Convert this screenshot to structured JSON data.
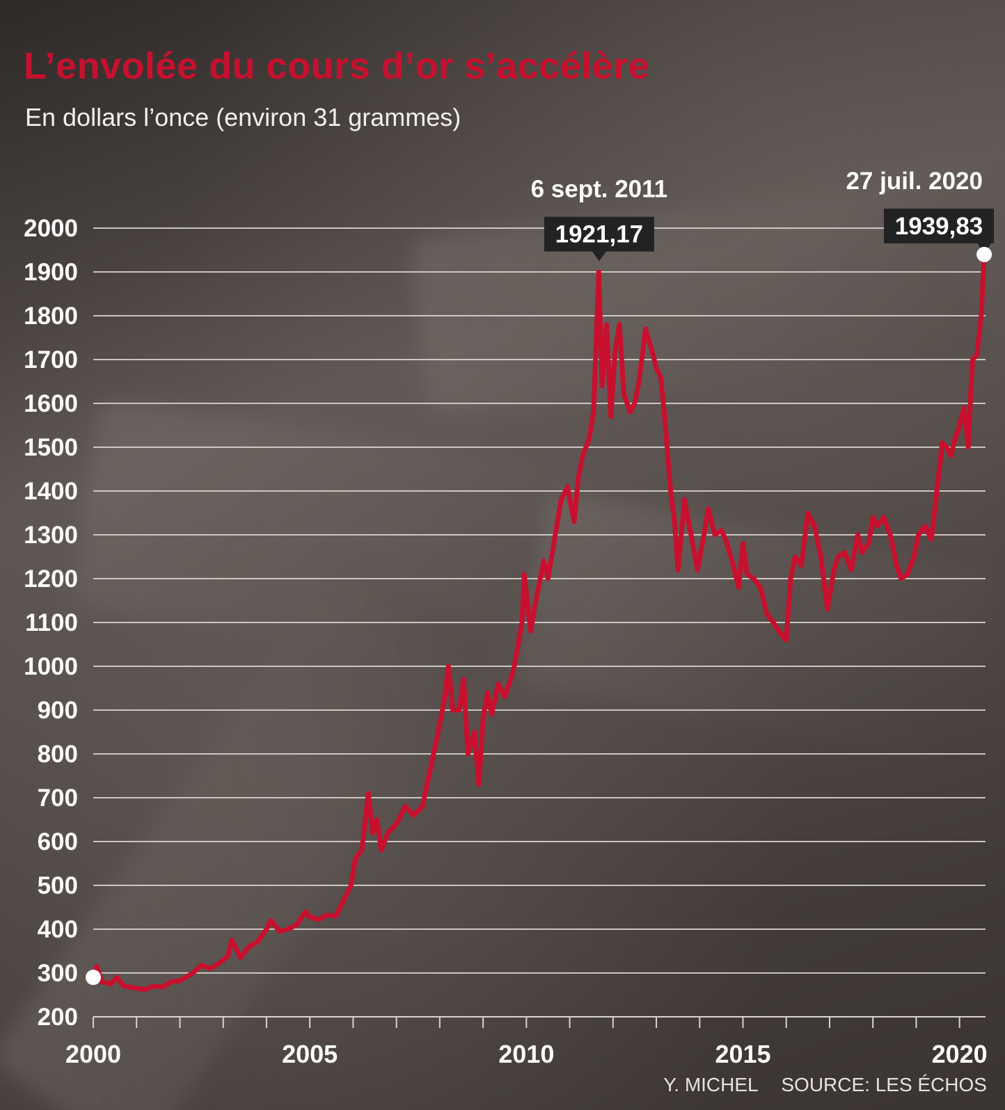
{
  "header": {
    "title": "L’envolée du cours d’or s’accélère",
    "subtitle": "En dollars l’once (environ 31 grammes)"
  },
  "footer": {
    "author": "Y. MICHEL",
    "source": "SOURCE: LES ÉCHOS"
  },
  "colors": {
    "line": "#c8102e",
    "grid": "#d9d4d0",
    "label_box": "#222222",
    "marker": "#ffffff"
  },
  "chart_data": {
    "type": "line",
    "title": "L’envolée du cours d’or s’accélère",
    "ylabel": "En dollars l’once (environ 31 grammes)",
    "xlabel": "",
    "ylim": [
      200,
      2000
    ],
    "yticks": [
      200,
      300,
      400,
      500,
      600,
      700,
      800,
      900,
      1000,
      1100,
      1200,
      1300,
      1400,
      1500,
      1600,
      1700,
      1800,
      1900,
      2000
    ],
    "xlim": [
      2000,
      2020.6
    ],
    "xticks": [
      2000,
      2001,
      2002,
      2003,
      2004,
      2005,
      2006,
      2007,
      2008,
      2009,
      2010,
      2011,
      2012,
      2013,
      2014,
      2015,
      2016,
      2017,
      2018,
      2019,
      2020
    ],
    "xtick_labels": [
      {
        "x": 2000,
        "label": "2000"
      },
      {
        "x": 2005,
        "label": "2005"
      },
      {
        "x": 2010,
        "label": "2010"
      },
      {
        "x": 2015,
        "label": "2015"
      },
      {
        "x": 2020,
        "label": "2020"
      }
    ],
    "grid": true,
    "series": [
      {
        "points": [
          [
            2000.0,
            290
          ],
          [
            2000.08,
            315
          ],
          [
            2000.2,
            280
          ],
          [
            2000.4,
            275
          ],
          [
            2000.55,
            290
          ],
          [
            2000.7,
            270
          ],
          [
            2001.0,
            265
          ],
          [
            2001.2,
            262
          ],
          [
            2001.4,
            270
          ],
          [
            2001.6,
            268
          ],
          [
            2001.8,
            280
          ],
          [
            2002.0,
            282
          ],
          [
            2002.3,
            300
          ],
          [
            2002.5,
            318
          ],
          [
            2002.7,
            310
          ],
          [
            2002.9,
            322
          ],
          [
            2003.1,
            338
          ],
          [
            2003.2,
            375
          ],
          [
            2003.4,
            335
          ],
          [
            2003.6,
            360
          ],
          [
            2003.8,
            372
          ],
          [
            2004.0,
            400
          ],
          [
            2004.1,
            420
          ],
          [
            2004.3,
            395
          ],
          [
            2004.5,
            400
          ],
          [
            2004.7,
            410
          ],
          [
            2004.9,
            440
          ],
          [
            2005.0,
            428
          ],
          [
            2005.2,
            422
          ],
          [
            2005.4,
            432
          ],
          [
            2005.6,
            430
          ],
          [
            2005.8,
            470
          ],
          [
            2005.95,
            500
          ],
          [
            2006.05,
            560
          ],
          [
            2006.2,
            580
          ],
          [
            2006.35,
            710
          ],
          [
            2006.45,
            620
          ],
          [
            2006.55,
            650
          ],
          [
            2006.65,
            580
          ],
          [
            2006.8,
            620
          ],
          [
            2007.0,
            640
          ],
          [
            2007.2,
            680
          ],
          [
            2007.4,
            660
          ],
          [
            2007.6,
            680
          ],
          [
            2007.75,
            750
          ],
          [
            2007.9,
            820
          ],
          [
            2008.1,
            920
          ],
          [
            2008.2,
            1000
          ],
          [
            2008.3,
            900
          ],
          [
            2008.45,
            900
          ],
          [
            2008.55,
            970
          ],
          [
            2008.65,
            800
          ],
          [
            2008.8,
            850
          ],
          [
            2008.9,
            730
          ],
          [
            2009.0,
            880
          ],
          [
            2009.1,
            940
          ],
          [
            2009.2,
            890
          ],
          [
            2009.35,
            960
          ],
          [
            2009.5,
            930
          ],
          [
            2009.7,
            990
          ],
          [
            2009.9,
            1100
          ],
          [
            2009.95,
            1210
          ],
          [
            2010.1,
            1080
          ],
          [
            2010.2,
            1140
          ],
          [
            2010.4,
            1240
          ],
          [
            2010.5,
            1200
          ],
          [
            2010.6,
            1260
          ],
          [
            2010.7,
            1320
          ],
          [
            2010.8,
            1380
          ],
          [
            2010.95,
            1410
          ],
          [
            2011.1,
            1330
          ],
          [
            2011.2,
            1430
          ],
          [
            2011.3,
            1480
          ],
          [
            2011.45,
            1520
          ],
          [
            2011.55,
            1580
          ],
          [
            2011.67,
            1900
          ],
          [
            2011.75,
            1640
          ],
          [
            2011.85,
            1780
          ],
          [
            2011.95,
            1570
          ],
          [
            2012.05,
            1720
          ],
          [
            2012.15,
            1780
          ],
          [
            2012.25,
            1620
          ],
          [
            2012.4,
            1580
          ],
          [
            2012.5,
            1600
          ],
          [
            2012.6,
            1650
          ],
          [
            2012.75,
            1770
          ],
          [
            2012.9,
            1720
          ],
          [
            2013.0,
            1680
          ],
          [
            2013.1,
            1660
          ],
          [
            2013.2,
            1560
          ],
          [
            2013.33,
            1400
          ],
          [
            2013.42,
            1330
          ],
          [
            2013.5,
            1220
          ],
          [
            2013.65,
            1380
          ],
          [
            2013.8,
            1300
          ],
          [
            2013.95,
            1220
          ],
          [
            2014.1,
            1300
          ],
          [
            2014.2,
            1360
          ],
          [
            2014.35,
            1300
          ],
          [
            2014.5,
            1310
          ],
          [
            2014.6,
            1290
          ],
          [
            2014.75,
            1240
          ],
          [
            2014.9,
            1180
          ],
          [
            2015.0,
            1280
          ],
          [
            2015.1,
            1210
          ],
          [
            2015.25,
            1200
          ],
          [
            2015.4,
            1180
          ],
          [
            2015.55,
            1120
          ],
          [
            2015.7,
            1100
          ],
          [
            2015.9,
            1070
          ],
          [
            2016.0,
            1060
          ],
          [
            2016.1,
            1200
          ],
          [
            2016.2,
            1250
          ],
          [
            2016.35,
            1230
          ],
          [
            2016.5,
            1350
          ],
          [
            2016.65,
            1320
          ],
          [
            2016.8,
            1250
          ],
          [
            2016.95,
            1130
          ],
          [
            2017.1,
            1220
          ],
          [
            2017.2,
            1250
          ],
          [
            2017.35,
            1260
          ],
          [
            2017.5,
            1220
          ],
          [
            2017.65,
            1300
          ],
          [
            2017.75,
            1260
          ],
          [
            2017.9,
            1280
          ],
          [
            2018.0,
            1340
          ],
          [
            2018.1,
            1320
          ],
          [
            2018.25,
            1340
          ],
          [
            2018.4,
            1300
          ],
          [
            2018.55,
            1230
          ],
          [
            2018.65,
            1200
          ],
          [
            2018.8,
            1210
          ],
          [
            2018.95,
            1250
          ],
          [
            2019.05,
            1300
          ],
          [
            2019.2,
            1320
          ],
          [
            2019.35,
            1290
          ],
          [
            2019.5,
            1420
          ],
          [
            2019.6,
            1510
          ],
          [
            2019.7,
            1500
          ],
          [
            2019.8,
            1480
          ],
          [
            2019.9,
            1520
          ],
          [
            2020.0,
            1550
          ],
          [
            2020.1,
            1590
          ],
          [
            2020.2,
            1500
          ],
          [
            2020.3,
            1700
          ],
          [
            2020.4,
            1710
          ],
          [
            2020.5,
            1800
          ],
          [
            2020.57,
            1939.83
          ]
        ]
      }
    ],
    "annotations": [
      {
        "date_label": "6 sept. 2011",
        "value_label": "1921,17",
        "x": 2011.68,
        "y": 1921.17
      },
      {
        "date_label": "27 juil. 2020",
        "value_label": "1939,83",
        "x": 2020.57,
        "y": 1939.83
      }
    ],
    "start_marker": {
      "x": 2000.0,
      "y": 290
    }
  }
}
